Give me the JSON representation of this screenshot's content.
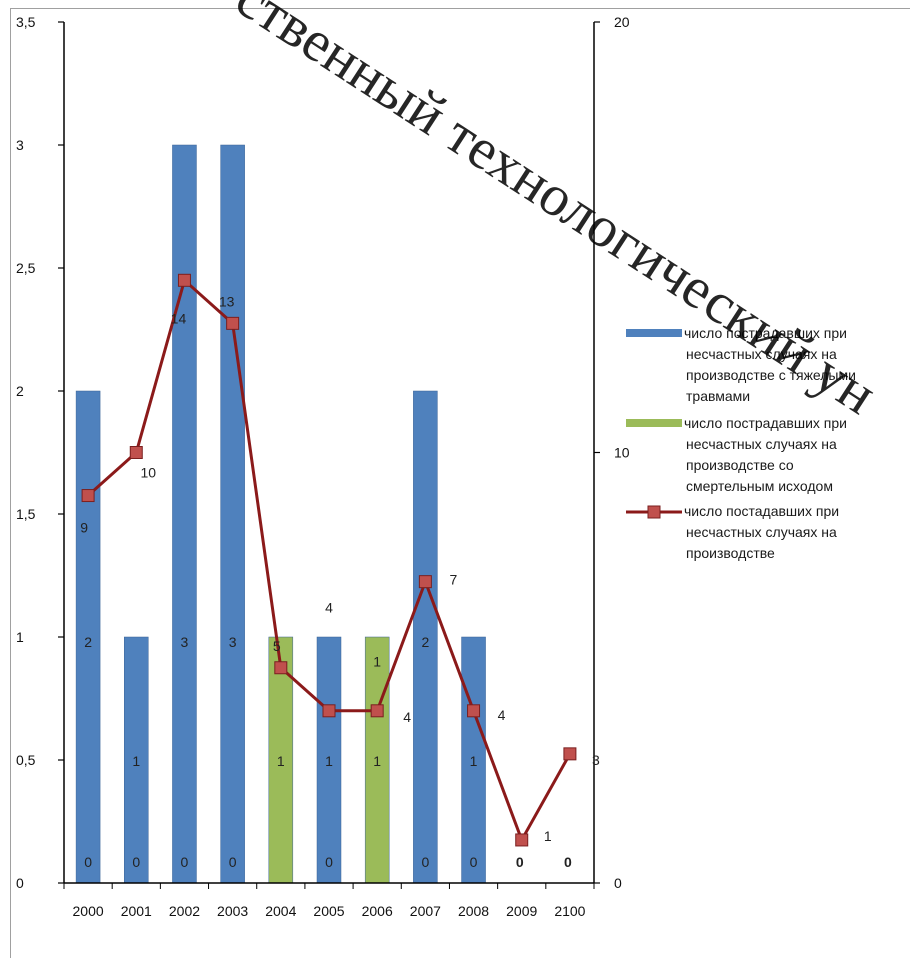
{
  "chart_data": {
    "type": "bar",
    "categories": [
      "2000",
      "2001",
      "2002",
      "2003",
      "2004",
      "2005",
      "2006",
      "2007",
      "2008",
      "2009",
      "2100"
    ],
    "series": [
      {
        "name": "число пострадавших при несчастных случаях на производстве с тяжелыми травмами",
        "type": "bar",
        "axis": "left",
        "color": "#4f81bd",
        "values": [
          2,
          1,
          3,
          3,
          0,
          1,
          0,
          2,
          1,
          0,
          0
        ],
        "labels": [
          "2",
          "1",
          "3",
          "3",
          "",
          "1",
          "",
          "2",
          "1",
          "",
          ""
        ]
      },
      {
        "name": "число пострадавших при несчастных случаях на производстве со смертельным исходом",
        "type": "bar",
        "axis": "left",
        "color": "#9bbb59",
        "values": [
          0,
          0,
          0,
          0,
          1,
          0,
          1,
          0,
          0,
          0,
          0
        ],
        "labels": [
          "",
          "",
          "",
          "",
          "1",
          "",
          "1",
          "",
          "",
          "",
          ""
        ]
      },
      {
        "name": "число постадавших при несчастных случаях на производстве",
        "type": "line",
        "axis": "right",
        "color": "#8b1a1a",
        "marker_color": "#c0504d",
        "values": [
          9,
          10,
          14,
          13,
          5,
          4,
          4,
          7,
          4,
          1,
          3
        ],
        "labels": [
          "9",
          "10",
          "14",
          "13",
          "5",
          "",
          "4",
          "7",
          "4",
          "1",
          "3"
        ]
      }
    ],
    "y_left": {
      "ylim": [
        0,
        3.5
      ],
      "ticks": [
        "0",
        "0,5",
        "1",
        "1,5",
        "2",
        "2,5",
        "3",
        "3,5"
      ]
    },
    "y_right": {
      "ylim": [
        0,
        20
      ],
      "ticks": [
        "0",
        "10",
        "20"
      ]
    },
    "extra_labels": [
      "0",
      "0",
      "0",
      "0",
      "0",
      "0",
      "0",
      "0",
      "0",
      "1",
      "1",
      "1",
      "1",
      "1",
      "4",
      "0"
    ],
    "legend_position": "right",
    "grid": false,
    "title": "",
    "xlabel": "",
    "ylabel": ""
  },
  "legend_lines": [
    [
      "число пострадавших при",
      "несчастных случаях на",
      "производстве  с тяжелыми",
      "травмами"
    ],
    [
      "число пострадавших при",
      "несчастных случаях на",
      "производстве  со",
      "смертельным исходом"
    ],
    [
      "число постадавших при",
      "несчастных случаях на",
      "производстве"
    ]
  ],
  "watermark": "ственный технологический ун"
}
